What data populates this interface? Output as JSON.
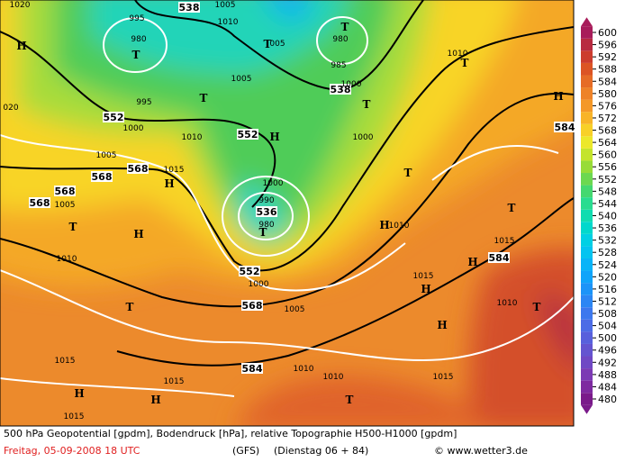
{
  "map": {
    "contour_labels": [
      "538",
      "538",
      "552",
      "552",
      "568",
      "568",
      "568",
      "568",
      "536",
      "552",
      "568",
      "584",
      "584",
      "584"
    ],
    "pressure_labels": [
      "1020",
      "995",
      "980",
      "1005",
      "1010",
      "1005",
      "995",
      "1000",
      "1010",
      "1005",
      "1015",
      "1005",
      "1010",
      "1000",
      "990",
      "980",
      "1000",
      "1005",
      "1015",
      "1010",
      "1015",
      "1010",
      "1010",
      "1010",
      "1015",
      "1015",
      "1015",
      "1015",
      "980",
      "985",
      "1000",
      "1000",
      "1010",
      "020",
      "005"
    ],
    "markers": [
      "H",
      "T",
      "T",
      "T",
      "T",
      "T",
      "H",
      "H",
      "T",
      "H",
      "T",
      "T",
      "H",
      "T",
      "H",
      "H",
      "T",
      "T",
      "H",
      "H",
      "H",
      "T",
      "H",
      "T"
    ]
  },
  "legend": {
    "levels": [
      480,
      484,
      488,
      492,
      496,
      500,
      504,
      508,
      512,
      516,
      520,
      524,
      528,
      532,
      536,
      540,
      544,
      548,
      552,
      556,
      560,
      564,
      568,
      572,
      576,
      580,
      584,
      588,
      592,
      596,
      600
    ],
    "colors": [
      "#7a1a8a",
      "#7e2aa0",
      "#7c3ab4",
      "#7048c4",
      "#6454d0",
      "#5860dc",
      "#4c6ce6",
      "#3c78ee",
      "#2c86f4",
      "#1c94f8",
      "#10a4fa",
      "#08b4f8",
      "#04c4f0",
      "#00d0e4",
      "#00d8cc",
      "#10dcb0",
      "#28dc90",
      "#44d870",
      "#6cd850",
      "#98dc38",
      "#c4e42c",
      "#ece82a",
      "#f8d028",
      "#f8b428",
      "#f49828",
      "#ee8228",
      "#e66c26",
      "#dc5424",
      "#cc3c2e",
      "#b82a40",
      "#a81c5a"
    ]
  },
  "footer": {
    "description": "500 hPa Geopotential [gpdm], Bodendruck [hPa], relative Topographie H500-H1000 [gpdm]",
    "date": "Freitag, 05-09-2008  18 UTC",
    "model": "(GFS)",
    "run": "(Dienstag 06 + 84)",
    "source": "© www.wetter3.de"
  }
}
